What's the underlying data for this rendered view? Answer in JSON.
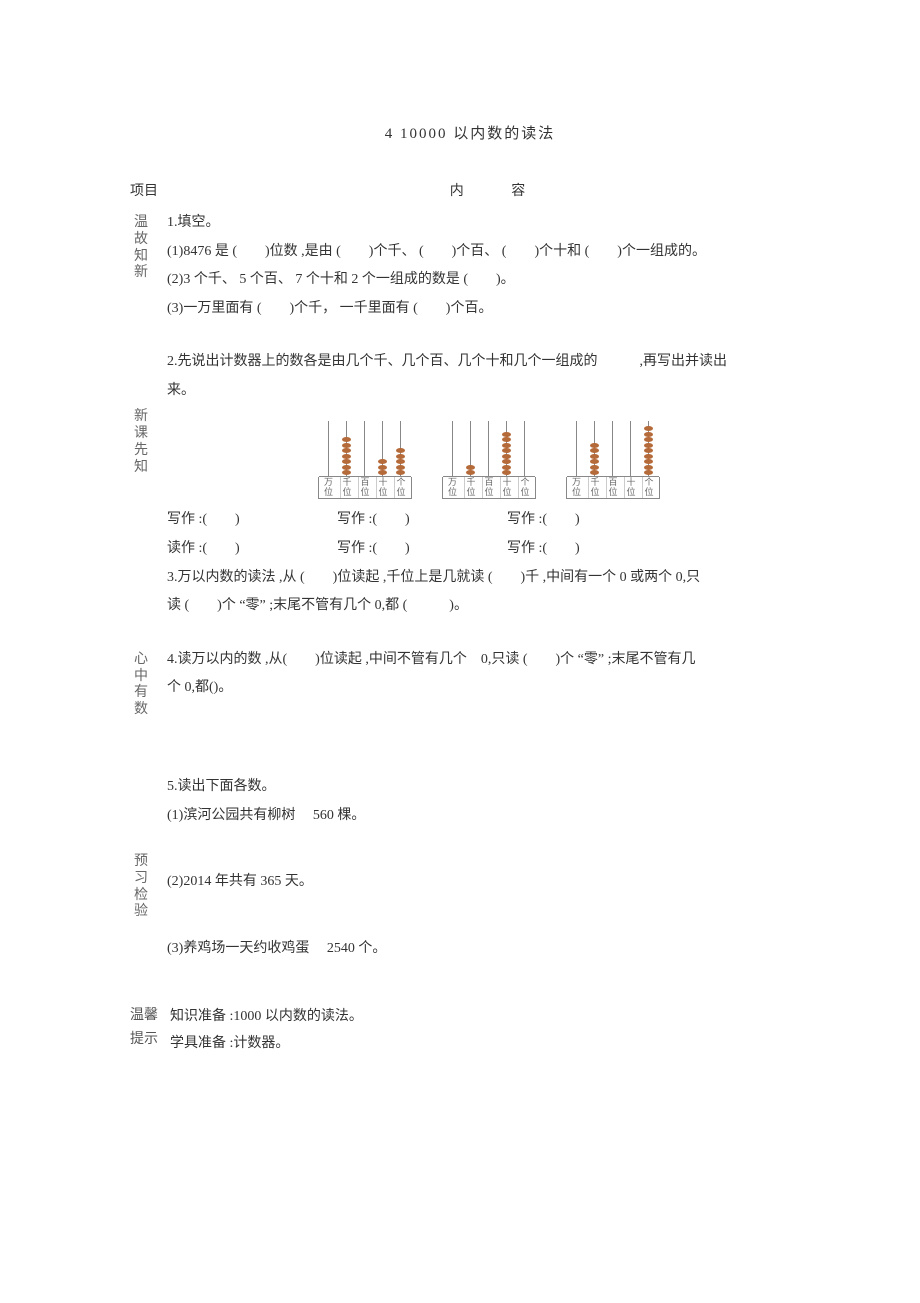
{
  "title": "4   10000 以内数的读法",
  "header": {
    "project": "项目",
    "content": "内　 容"
  },
  "sections": {
    "wengu": {
      "label": [
        "温",
        "故",
        "知",
        "新"
      ],
      "q1_head": "1.填空。",
      "q1_1": "(1)8476 是 (　　)位数 ,是由 (　　)个千、 (　　)个百、 (　　)个十和 (　　)个一组成的。",
      "q1_2": "(2)3 个千、 5 个百、 7 个十和  2 个一组成的数是  (　　)。",
      "q1_3": "(3)一万里面有  (　　)个千， 一千里面有  (　　)个百。"
    },
    "xinke": {
      "label": [
        "新",
        "课",
        "先",
        "知"
      ],
      "q2_head": "2.先说出计数器上的数各是由几个千、几个百、几个十和几个一组成的　　　,再写出并读出",
      "q2_head2": "来。",
      "counters": [
        {
          "beads": [
            0,
            7,
            0,
            3,
            5
          ]
        },
        {
          "beads": [
            0,
            2,
            0,
            8,
            0
          ]
        },
        {
          "beads": [
            0,
            6,
            0,
            0,
            9
          ]
        }
      ],
      "placeLabels": [
        [
          "万",
          "位"
        ],
        [
          "千",
          "位"
        ],
        [
          "百",
          "位"
        ],
        [
          "十",
          "位"
        ],
        [
          "个",
          "位"
        ]
      ],
      "write": "写作 :(　　)",
      "read": "读作 :(　　)",
      "q3": "3.万以内数的读法  ,从 (　　)位读起 ,千位上是几就读  (　　)千 ,中间有一个  0 或两个  0,只",
      "q3b": "读 (　　)个 “零” ;末尾不管有几个  0,都 (　　　)。"
    },
    "xinzhong": {
      "label": [
        "心",
        "中",
        "有",
        "数"
      ],
      "q4": "4.读万以内的数  ,从(　　)位读起 ,中间不管有几个　0,只读 (　　)个 “零” ;末尾不管有几",
      "q4b": "个 0,都()。"
    },
    "yuxi": {
      "label": [
        "预",
        "习",
        "检",
        "验"
      ],
      "q5_head": "5.读出下面各数。",
      "q5_1": "(1)滨河公园共有柳树　 560 棵。",
      "q5_2": "(2)2014 年共有  365 天。",
      "q5_3": "(3)养鸡场一天约收鸡蛋　 2540 个。"
    }
  },
  "tips": {
    "label": [
      "温馨",
      "提示"
    ],
    "line1": "知识准备 :1000 以内数的读法。",
    "line2": "学具准备 :计数器。"
  }
}
